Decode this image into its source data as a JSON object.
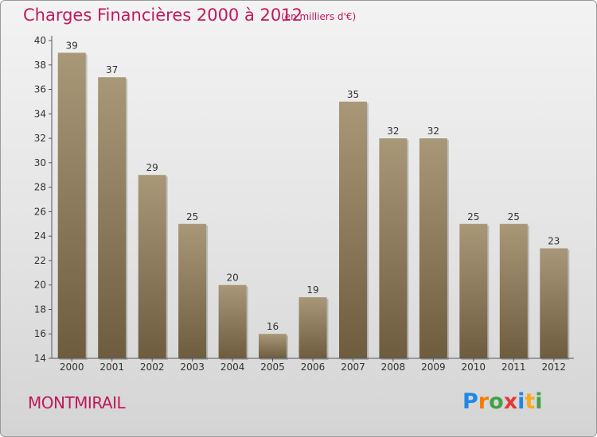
{
  "header": {
    "title": "Charges Financières 2000 à 2012",
    "subtitle": "(en milliers d'€)"
  },
  "footer": {
    "city": "MONTMIRAIL",
    "brand_letters": [
      {
        "char": "P",
        "color": "#1e88e5"
      },
      {
        "char": "r",
        "color": "#f57c00"
      },
      {
        "char": "o",
        "color": "#43a047"
      },
      {
        "char": "x",
        "color": "#e53935"
      },
      {
        "char": "i",
        "color": "#1e88e5"
      },
      {
        "char": "t",
        "color": "#f9a825"
      },
      {
        "char": "i",
        "color": "#43a047"
      }
    ]
  },
  "colors": {
    "title": "#c2185b",
    "bar_light": "#a89878",
    "bar_dark": "#6e5c3e",
    "axis": "#555555"
  },
  "chart_data": {
    "type": "bar",
    "title": "Charges Financières 2000 à 2012",
    "subtitle": "(en milliers d'€)",
    "xlabel": "",
    "ylabel": "",
    "categories": [
      "2000",
      "2001",
      "2002",
      "2003",
      "2004",
      "2005",
      "2006",
      "2007",
      "2008",
      "2009",
      "2010",
      "2011",
      "2012"
    ],
    "values": [
      39,
      37,
      29,
      25,
      20,
      16,
      19,
      35,
      32,
      32,
      25,
      25,
      23
    ],
    "data_labels": [
      "39",
      "37",
      "29",
      "25",
      "20",
      "16",
      "19",
      "35",
      "32",
      "32",
      "25",
      "25",
      "23"
    ],
    "ylim": [
      14,
      40
    ],
    "yticks": [
      "14",
      "16",
      "18",
      "20",
      "22",
      "24",
      "26",
      "28",
      "30",
      "32",
      "34",
      "36",
      "38",
      "40"
    ],
    "grid": false,
    "legend": "none"
  }
}
